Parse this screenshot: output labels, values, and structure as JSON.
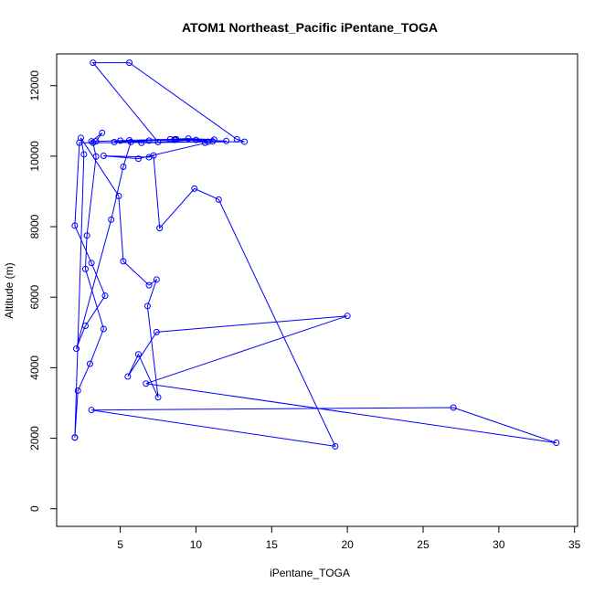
{
  "chart_data": {
    "type": "line",
    "title": "ATOM1 Northeast_Pacific iPentane_TOGA",
    "xlabel": "iPentane_TOGA",
    "ylabel": "Altitude (m)",
    "xlim": [
      0.8,
      35.2
    ],
    "ylim": [
      -500,
      12900
    ],
    "xticks": [
      5,
      10,
      15,
      20,
      25,
      30,
      35
    ],
    "xtick_labels": [
      "5",
      "10",
      "15",
      "20",
      "25",
      "30",
      "35"
    ],
    "yticks": [
      0,
      2000,
      4000,
      6000,
      8000,
      10000,
      12000
    ],
    "ytick_labels": [
      "0",
      "2000",
      "4000",
      "6000",
      "8000",
      "10000",
      "12000"
    ],
    "grid": false,
    "series": [
      {
        "color": "#0000ff",
        "marker": "open-circle",
        "x": [
          2.0,
          2.2,
          3.0,
          3.9,
          2.7,
          2.8,
          3.4,
          3.2,
          3.1,
          3.8,
          3.4,
          5.6,
          8.6,
          10.0,
          7.5,
          3.2,
          5.6,
          12.7,
          13.2,
          2.3,
          2.0,
          3.1,
          4.0,
          2.7,
          2.1,
          4.4,
          5.2,
          5.7,
          8.3,
          9.5,
          11.2,
          8.7,
          10.8,
          6.4,
          5.0,
          4.6,
          6.9,
          8.6,
          12.0,
          10.6,
          11.1,
          6.2,
          3.9,
          6.9,
          7.2,
          7.6,
          9.9,
          11.5,
          19.2,
          3.1,
          27.0,
          33.8,
          6.7,
          20.0,
          7.4,
          5.5,
          6.2,
          7.5,
          6.8,
          7.4,
          6.9,
          5.2,
          4.9,
          2.4,
          2.6,
          2.0
        ],
        "y": [
          2020,
          3350,
          4110,
          5100,
          6800,
          7750,
          9990,
          10380,
          10420,
          10660,
          10420,
          10450,
          10480,
          10460,
          10400,
          12650,
          12650,
          10480,
          10410,
          10380,
          8030,
          6970,
          6040,
          5190,
          4540,
          8200,
          9700,
          10400,
          10480,
          10500,
          10470,
          10480,
          10410,
          10380,
          10440,
          10400,
          10440,
          10460,
          10430,
          10380,
          10420,
          9930,
          10010,
          9970,
          10020,
          7960,
          9080,
          8770,
          1770,
          2800,
          2870,
          1870,
          3550,
          5470,
          5010,
          3750,
          4380,
          3160,
          5750,
          6500,
          6340,
          7020,
          8870,
          10520,
          10050,
          2020
        ]
      }
    ]
  }
}
